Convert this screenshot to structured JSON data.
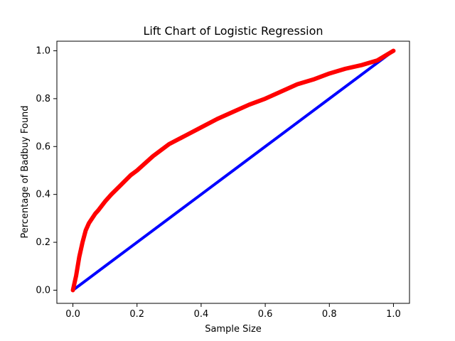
{
  "chart_data": {
    "type": "line",
    "title": "Lift Chart of Logistic Regression",
    "xlabel": "Sample Size",
    "ylabel": "Percentage of Badbuy Found",
    "xlim": [
      -0.05,
      1.05
    ],
    "ylim": [
      -0.055,
      1.04
    ],
    "grid": false,
    "xticks": [
      "0.0",
      "0.2",
      "0.4",
      "0.6",
      "0.8",
      "1.0"
    ],
    "yticks": [
      "0.0",
      "0.2",
      "0.4",
      "0.6",
      "0.8",
      "1.0"
    ],
    "series": [
      {
        "color": "#0000ff",
        "x": [
          0.0,
          0.1,
          0.2,
          0.3,
          0.4,
          0.5,
          0.6,
          0.7,
          0.8,
          0.9,
          1.0
        ],
        "y": [
          0.0,
          0.1,
          0.2,
          0.3,
          0.4,
          0.5,
          0.6,
          0.7,
          0.8,
          0.9,
          1.0
        ]
      },
      {
        "color": "#ff0000",
        "x": [
          0.0,
          0.01,
          0.02,
          0.03,
          0.04,
          0.05,
          0.06,
          0.07,
          0.08,
          0.1,
          0.12,
          0.15,
          0.18,
          0.2,
          0.25,
          0.3,
          0.35,
          0.4,
          0.45,
          0.5,
          0.55,
          0.6,
          0.65,
          0.7,
          0.75,
          0.8,
          0.85,
          0.9,
          0.95,
          1.0
        ],
        "y": [
          0.0,
          0.06,
          0.14,
          0.2,
          0.25,
          0.28,
          0.3,
          0.32,
          0.335,
          0.37,
          0.4,
          0.44,
          0.48,
          0.5,
          0.56,
          0.61,
          0.645,
          0.68,
          0.715,
          0.745,
          0.775,
          0.8,
          0.83,
          0.86,
          0.88,
          0.905,
          0.925,
          0.94,
          0.96,
          1.0
        ]
      }
    ]
  }
}
